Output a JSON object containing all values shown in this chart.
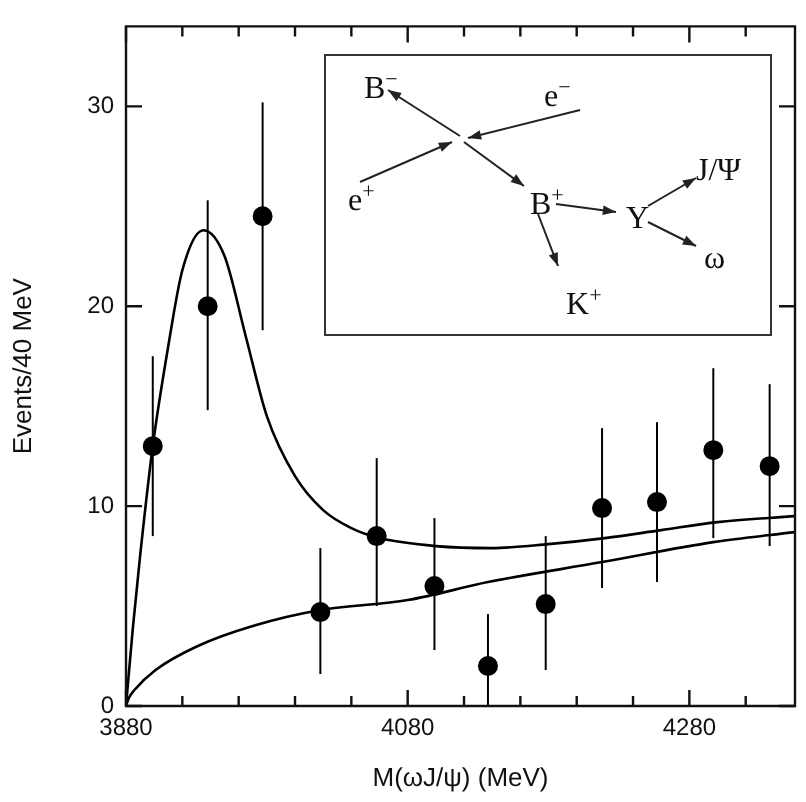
{
  "chart_data": {
    "type": "scatter",
    "xlabel": "M(ωJ/ψ) (MeV)",
    "ylabel": "Events/40 MeV",
    "xlim": [
      3880,
      4355
    ],
    "ylim": [
      0,
      34
    ],
    "xticks": [
      3880,
      {
        "value": 3920,
        "label": null
      },
      {
        "value": 3960,
        "label": null
      },
      {
        "value": 4000,
        "label": null
      },
      {
        "value": 4040,
        "label": null
      },
      4080,
      {
        "value": 4120,
        "label": null
      },
      {
        "value": 4160,
        "label": null
      },
      {
        "value": 4200,
        "label": null
      },
      {
        "value": 4240,
        "label": null
      },
      4280,
      {
        "value": 4320,
        "label": null
      }
    ],
    "yticks": [
      0,
      10,
      20,
      30
    ],
    "grid": false,
    "legend": false,
    "marker": "circle",
    "series": [
      {
        "type": "scatter",
        "color": "#000000",
        "x": [
          3899,
          3938,
          3977,
          4018,
          4058,
          4099,
          4137,
          4178,
          4218,
          4257,
          4297,
          4337
        ],
        "values": [
          13.0,
          20.0,
          24.5,
          4.7,
          8.5,
          6.0,
          2.0,
          5.1,
          9.9,
          10.2,
          12.8,
          12.0
        ],
        "errors": [
          [
            8.5,
            17.5
          ],
          [
            14.8,
            25.3
          ],
          [
            18.8,
            30.2
          ],
          [
            1.6,
            7.9
          ],
          [
            5.0,
            12.4
          ],
          [
            2.8,
            9.4
          ],
          [
            0,
            4.6
          ],
          [
            1.8,
            8.5
          ],
          [
            5.9,
            13.9
          ],
          [
            6.2,
            14.2
          ],
          [
            8.4,
            16.9
          ],
          [
            8.0,
            16.1
          ]
        ]
      },
      {
        "type": "line",
        "color": "#000000",
        "marker": "none",
        "x": [
          3880,
          3885,
          3890,
          3899,
          3910,
          3920,
          3935,
          3950,
          3965,
          3980,
          4000,
          4020,
          4040,
          4060,
          4100,
          4140,
          4180,
          4220,
          4260,
          4300,
          4355
        ],
        "values": [
          0,
          4,
          7.5,
          13,
          18,
          21.8,
          23.8,
          22.5,
          18.5,
          14.5,
          11.5,
          9.8,
          8.9,
          8.4,
          8.0,
          7.9,
          8.1,
          8.4,
          8.8,
          9.2,
          9.5
        ]
      },
      {
        "type": "line",
        "color": "#000000",
        "marker": "none",
        "x": [
          3880,
          3882,
          3886,
          3901,
          3931,
          3970,
          4018,
          4080,
          4137,
          4218,
          4297,
          4355
        ],
        "values": [
          0,
          0.4,
          0.8,
          1.8,
          3.0,
          4.0,
          4.8,
          5.3,
          6.2,
          7.2,
          8.2,
          8.7
        ]
      }
    ],
    "annotations": [
      "B$^{−}$",
      "e$^{−}$",
      "e$^{+}$",
      "B$^{+}$",
      "Y",
      "J/Ψ",
      "ω",
      "K$^{+}$"
    ]
  }
}
